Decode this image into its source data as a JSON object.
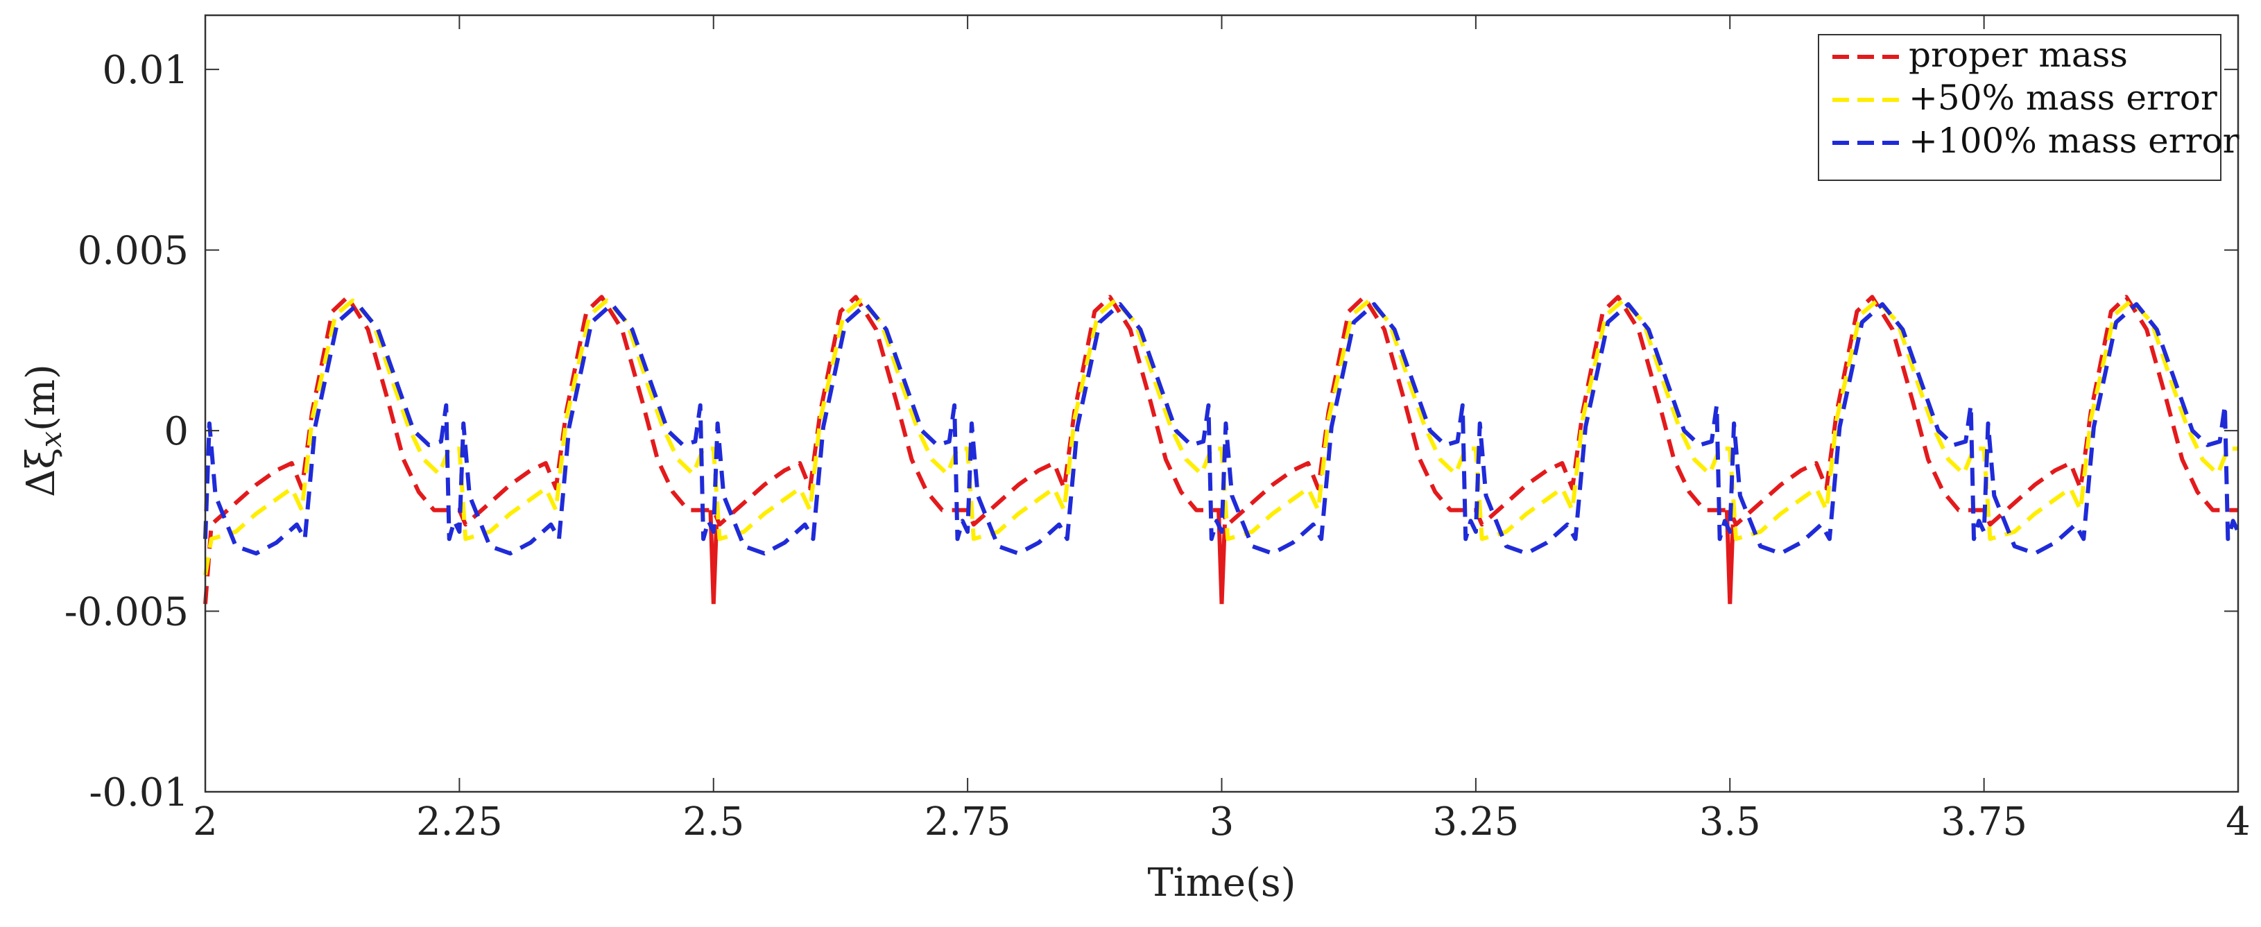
{
  "chart_data": {
    "type": "line",
    "title": "",
    "xlabel": "Time(s)",
    "ylabel_symbol": "Δξ",
    "ylabel_subscript": "x",
    "ylabel_unit": "(m)",
    "xlim": [
      2,
      4
    ],
    "ylim": [
      -0.01,
      0.0115
    ],
    "xticks": [
      2,
      2.25,
      2.5,
      2.75,
      3,
      3.25,
      3.5,
      3.75,
      4
    ],
    "xtick_labels": [
      "2",
      "2.25",
      "2.5",
      "2.75",
      "3",
      "3.25",
      "3.5",
      "3.75",
      "4"
    ],
    "yticks": [
      -0.01,
      -0.005,
      0,
      0.005,
      0.01
    ],
    "ytick_labels": [
      "-0.01",
      "-0.005",
      "0",
      "0.005",
      "0.01"
    ],
    "grid": false,
    "legend_position": "top-right",
    "period": 0.25,
    "series": [
      {
        "name": "proper mass",
        "color": "#e31a1c",
        "phase_t": [
          0.0,
          0.006,
          0.03,
          0.05,
          0.07,
          0.085,
          0.095,
          0.105,
          0.125,
          0.14,
          0.16,
          0.18,
          0.195,
          0.21,
          0.225,
          0.24,
          0.25
        ],
        "phase_y": [
          -0.0048,
          -0.0026,
          -0.002,
          -0.0015,
          -0.0011,
          -0.0009,
          -0.0016,
          0.0005,
          0.0033,
          0.0037,
          0.0028,
          0.0008,
          -0.0008,
          -0.0017,
          -0.0022,
          -0.0022,
          -0.0022
        ],
        "spikes_at": [
          2.5,
          3.0,
          3.5
        ],
        "spike_y": -0.0048
      },
      {
        "name": "+50% mass error",
        "color": "#ffee00",
        "phase_t": [
          0.0,
          0.006,
          0.03,
          0.05,
          0.07,
          0.085,
          0.095,
          0.105,
          0.128,
          0.145,
          0.165,
          0.185,
          0.2,
          0.215,
          0.23,
          0.24,
          0.25
        ],
        "phase_y": [
          -0.004,
          -0.003,
          -0.0028,
          -0.0023,
          -0.0019,
          -0.0016,
          -0.0022,
          0.0003,
          0.0032,
          0.0036,
          0.003,
          0.0013,
          0.0001,
          -0.0008,
          -0.0012,
          -0.0005,
          -0.0005
        ],
        "spikes_at": [],
        "spike_y": 0
      },
      {
        "name": "+100% mass error",
        "color": "#1f2bd8",
        "phase_t": [
          0.0,
          0.004,
          0.01,
          0.03,
          0.05,
          0.07,
          0.09,
          0.098,
          0.108,
          0.13,
          0.15,
          0.17,
          0.19,
          0.205,
          0.22,
          0.232,
          0.237,
          0.24,
          0.245,
          0.25
        ],
        "phase_y": [
          -0.003,
          0.0002,
          -0.0018,
          -0.0032,
          -0.0034,
          -0.0031,
          -0.0026,
          -0.003,
          0.0001,
          0.003,
          0.0035,
          0.0028,
          0.0012,
          0.0,
          -0.0004,
          -0.0003,
          0.0007,
          -0.003,
          -0.0025,
          -0.0028
        ],
        "spikes_at": [],
        "spike_y": 0
      }
    ]
  }
}
